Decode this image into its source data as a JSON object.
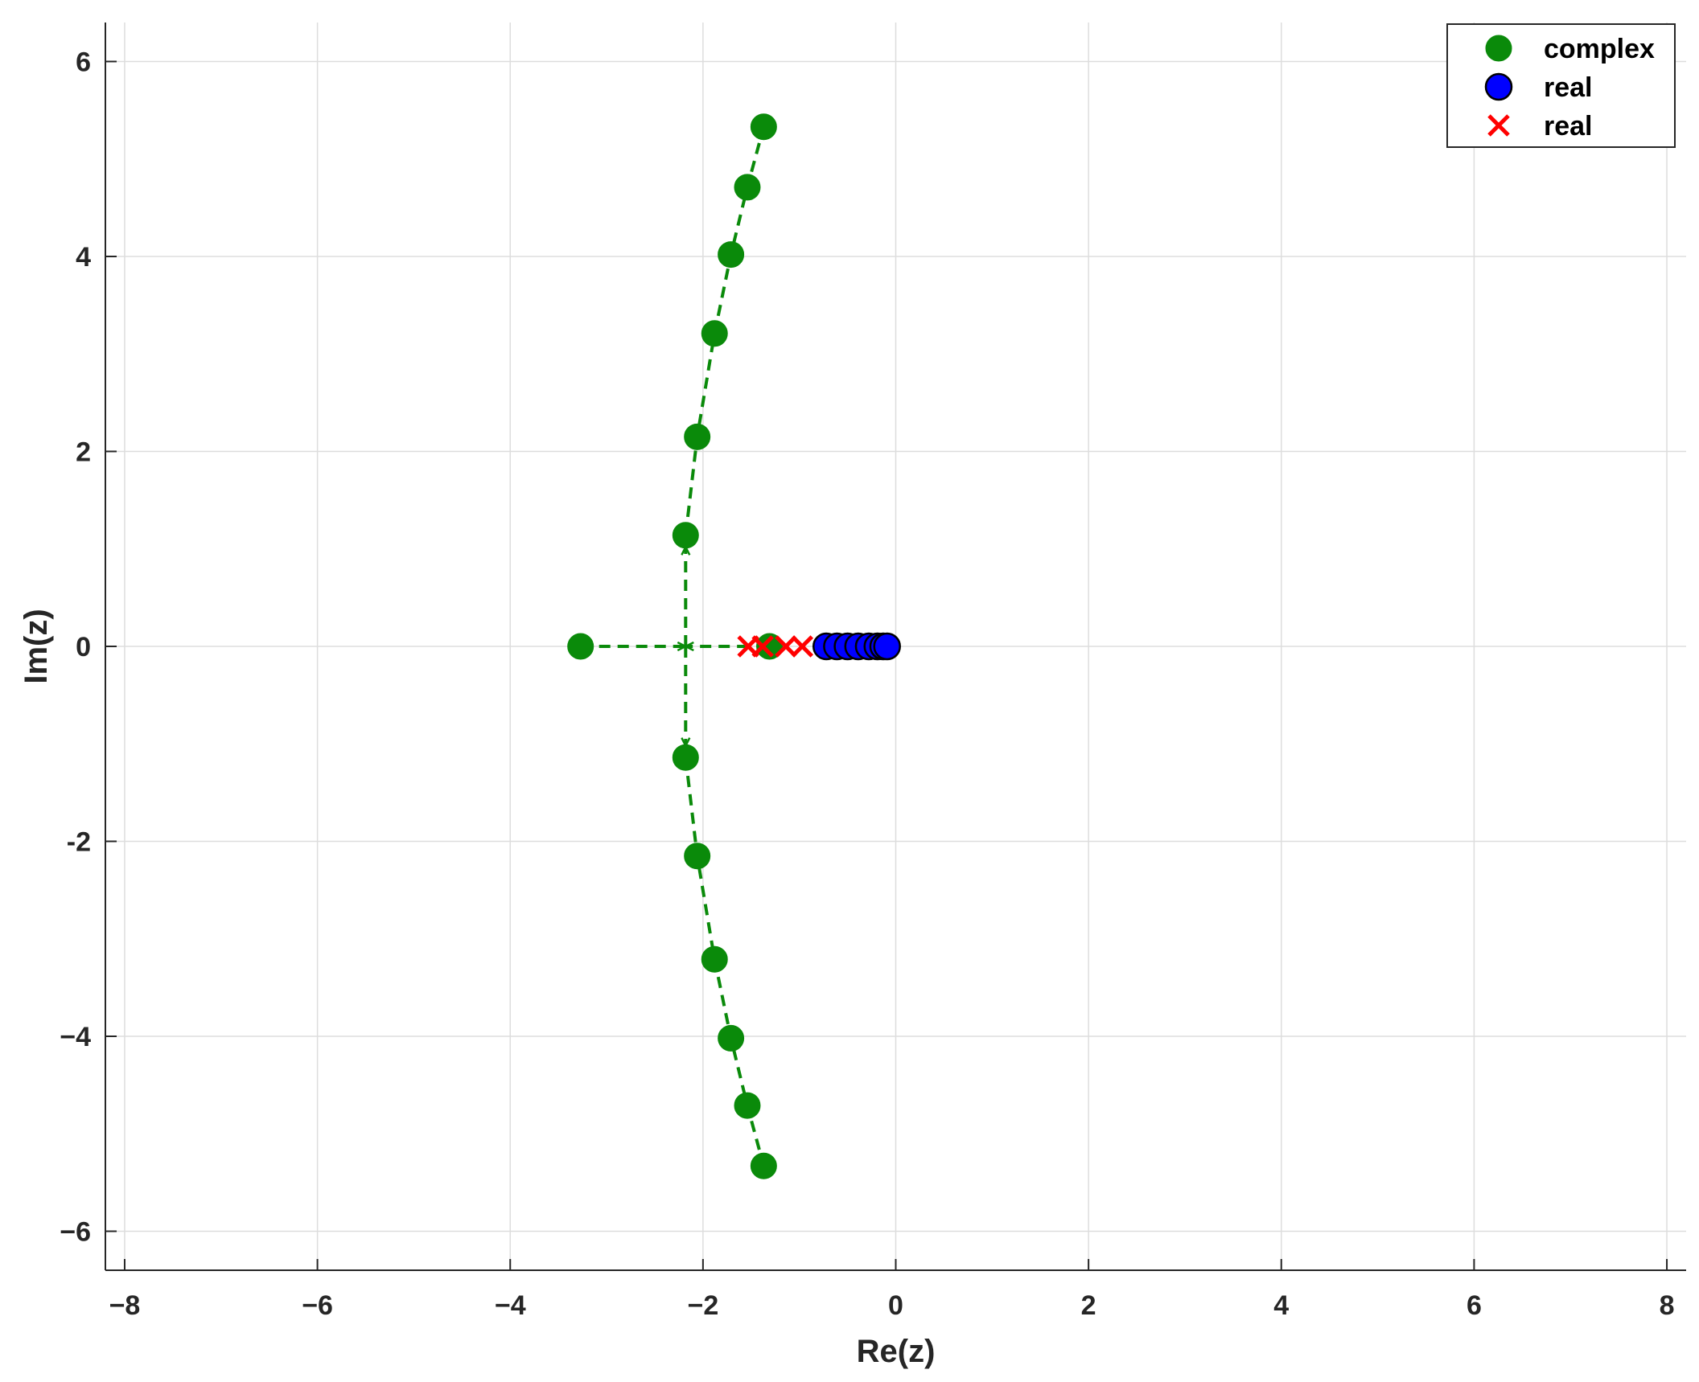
{
  "chart_data": {
    "type": "scatter",
    "title": "",
    "xlabel": "Re(z)",
    "ylabel": "Im(z)",
    "xlim": [
      -8.2,
      8.2
    ],
    "ylim": [
      -6.4,
      6.4
    ],
    "xticks": [
      -8,
      -6,
      -4,
      -2,
      0,
      2,
      4,
      6,
      8
    ],
    "xtick_labels": [
      "−8",
      "−6",
      "−4",
      "−2",
      "0",
      "2",
      "4",
      "6",
      "8"
    ],
    "yticks": [
      6,
      4,
      2,
      0,
      -2,
      -4,
      -6
    ],
    "ytick_labels": [
      "6",
      "4",
      "2",
      "0",
      "-2",
      "−4",
      "−6"
    ],
    "grid": true,
    "legend_position": "top-right",
    "series": [
      {
        "name": "complex",
        "marker": "circle",
        "color": "#0a8a0a",
        "line": "dashed",
        "points": [
          {
            "x": -3.27,
            "y": 0.0
          },
          {
            "x": -2.18,
            "y": 1.14
          },
          {
            "x": -2.06,
            "y": 2.15
          },
          {
            "x": -1.88,
            "y": 3.21
          },
          {
            "x": -1.71,
            "y": 4.02
          },
          {
            "x": -1.54,
            "y": 4.71
          },
          {
            "x": -1.37,
            "y": 5.33
          },
          {
            "x": -2.18,
            "y": -1.14
          },
          {
            "x": -2.06,
            "y": -2.15
          },
          {
            "x": -1.88,
            "y": -3.21
          },
          {
            "x": -1.71,
            "y": -4.02
          },
          {
            "x": -1.54,
            "y": -4.71
          },
          {
            "x": -1.37,
            "y": -5.33
          },
          {
            "x": -1.31,
            "y": 0.0
          }
        ]
      },
      {
        "name": "real",
        "marker": "circle",
        "color": "#0000ff",
        "points": [
          {
            "x": -0.72,
            "y": 0.0
          },
          {
            "x": -0.61,
            "y": 0.0
          },
          {
            "x": -0.5,
            "y": 0.0
          },
          {
            "x": -0.39,
            "y": 0.0
          },
          {
            "x": -0.28,
            "y": 0.0
          },
          {
            "x": -0.19,
            "y": 0.0
          },
          {
            "x": -0.13,
            "y": 0.0
          },
          {
            "x": -0.09,
            "y": 0.0
          }
        ]
      },
      {
        "name": "real",
        "marker": "x",
        "color": "#ff0000",
        "points": [
          {
            "x": -1.53,
            "y": 0.0
          },
          {
            "x": -1.38,
            "y": 0.0
          },
          {
            "x": -1.14,
            "y": 0.0
          },
          {
            "x": -0.97,
            "y": 0.0
          }
        ]
      }
    ]
  }
}
